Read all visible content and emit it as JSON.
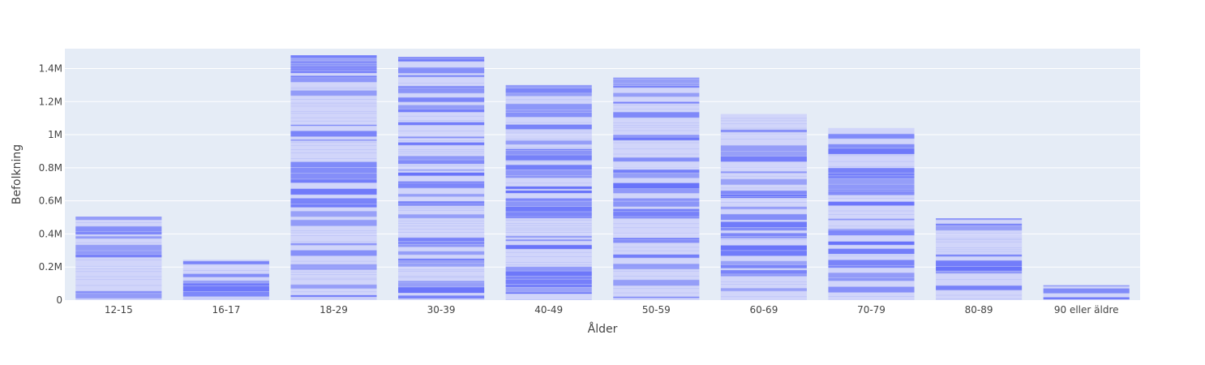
{
  "chart_data": {
    "type": "bar",
    "stacked": true,
    "title": "",
    "xlabel": "Ålder",
    "ylabel": "Befolkning",
    "categories": [
      "12-15",
      "16-17",
      "18-29",
      "30-39",
      "40-49",
      "50-59",
      "60-69",
      "70-79",
      "80-89",
      "90 eller äldre"
    ],
    "values": [
      505000,
      245000,
      1480000,
      1470000,
      1300000,
      1345000,
      1125000,
      1040000,
      495000,
      90000
    ],
    "ylim": [
      0,
      1520000
    ],
    "yticks": [
      {
        "value": 0,
        "label": "0"
      },
      {
        "value": 200000,
        "label": "0.2M"
      },
      {
        "value": 400000,
        "label": "0.4M"
      },
      {
        "value": 600000,
        "label": "0.6M"
      },
      {
        "value": 800000,
        "label": "0.8M"
      },
      {
        "value": 1000000,
        "label": "1M"
      },
      {
        "value": 1200000,
        "label": "1.2M"
      },
      {
        "value": 1400000,
        "label": "1.4M"
      }
    ],
    "grid": true,
    "legend": "none",
    "colors": {
      "bar": "#636efa",
      "background": "#e5ecf6",
      "grid": "#ffffff",
      "text": "#444444"
    }
  }
}
